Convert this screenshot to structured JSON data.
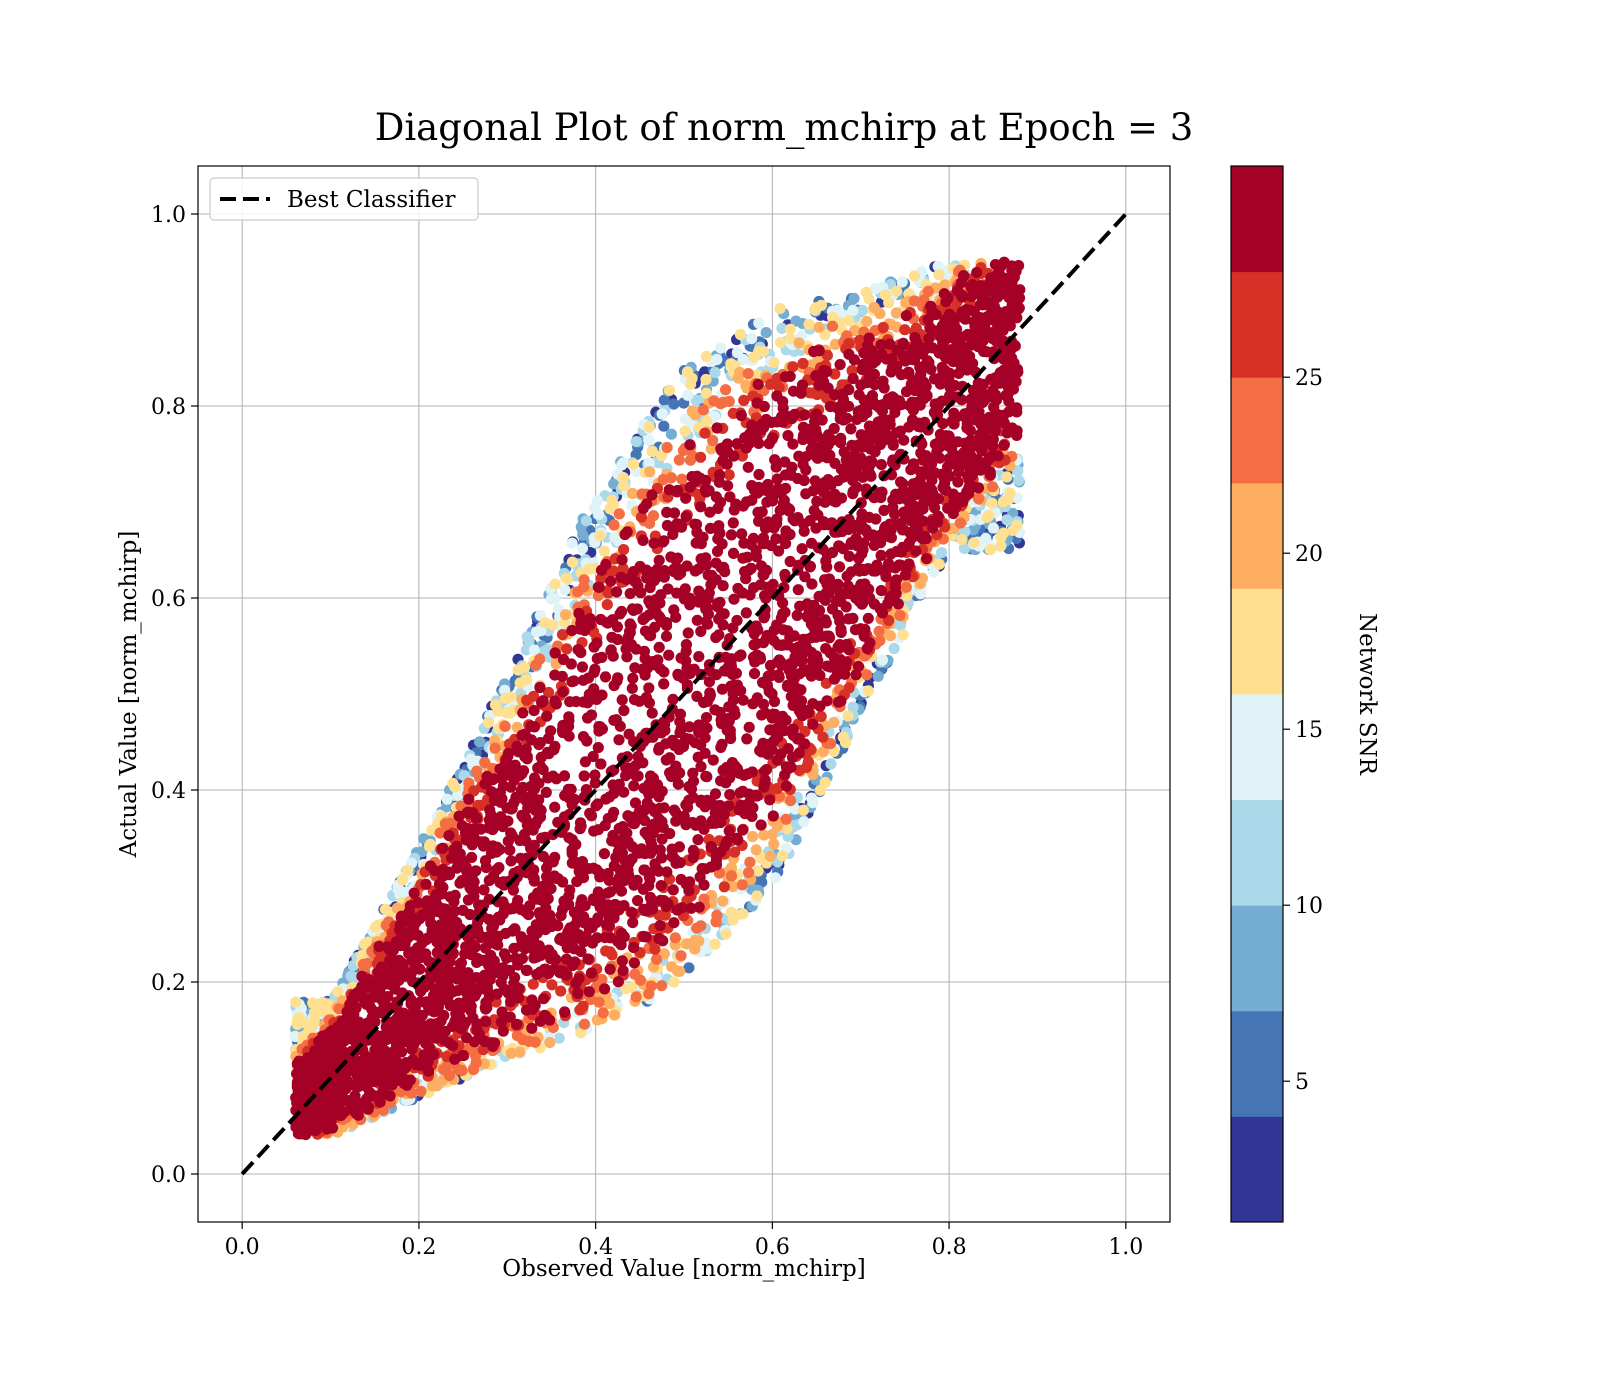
{
  "chart_data": {
    "type": "scatter",
    "title": "Diagonal Plot of norm_mchirp at Epoch = 3",
    "xlabel": "Observed Value [norm_mchirp]",
    "ylabel": "Actual Value [norm_mchirp]",
    "xlim": [
      -0.05,
      1.05
    ],
    "ylim": [
      -0.05,
      1.05
    ],
    "xticks": [
      "0.0",
      "0.2",
      "0.4",
      "0.6",
      "0.8",
      "1.0"
    ],
    "yticks": [
      "0.0",
      "0.2",
      "0.4",
      "0.6",
      "0.8",
      "1.0"
    ],
    "grid": true,
    "legend": {
      "position": "top-left",
      "entries": [
        "Best Classifier"
      ]
    },
    "reference_line": {
      "name": "Best Classifier",
      "x": [
        0.0,
        1.0
      ],
      "y": [
        0.0,
        1.0
      ],
      "style": "dashed",
      "color": "#000000"
    },
    "colorbar": {
      "label": "Network SNR",
      "range": [
        1,
        31
      ],
      "ticks": [
        "5",
        "10",
        "15",
        "20",
        "25"
      ],
      "bins": 10,
      "colors": [
        "#313695",
        "#4575b4",
        "#74add1",
        "#abd9e9",
        "#e0f3f8",
        "#fee090",
        "#fdae61",
        "#f46d43",
        "#d73027",
        "#a50026"
      ]
    },
    "density_summary": [
      {
        "x": 0.1,
        "y_mean": 0.11,
        "spread": 0.07
      },
      {
        "x": 0.2,
        "y_mean": 0.21,
        "spread": 0.13
      },
      {
        "x": 0.3,
        "y_mean": 0.32,
        "spread": 0.2
      },
      {
        "x": 0.4,
        "y_mean": 0.43,
        "spread": 0.28
      },
      {
        "x": 0.5,
        "y_mean": 0.52,
        "spread": 0.32
      },
      {
        "x": 0.6,
        "y_mean": 0.6,
        "spread": 0.3
      },
      {
        "x": 0.7,
        "y_mean": 0.7,
        "spread": 0.22
      },
      {
        "x": 0.8,
        "y_mean": 0.8,
        "spread": 0.15
      }
    ]
  }
}
